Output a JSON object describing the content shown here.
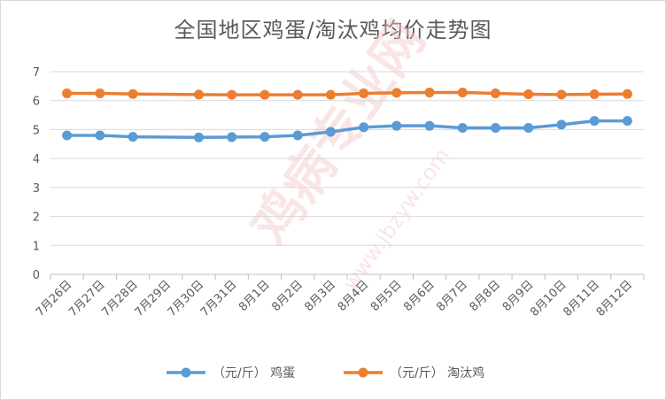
{
  "chart_data": {
    "type": "line",
    "title": "全国地区鸡蛋/淘汰鸡均价走势图",
    "categories": [
      "7月26日",
      "7月27日",
      "7月28日",
      "7月29日",
      "7月30日",
      "7月31日",
      "8月1日",
      "8月2日",
      "8月3日",
      "8月4日",
      "8月5日",
      "8月6日",
      "8月7日",
      "8月8日",
      "8月9日",
      "8月10日",
      "8月11日",
      "8月12日"
    ],
    "ylim": [
      0,
      7
    ],
    "yticks": [
      0,
      1,
      2,
      3,
      4,
      5,
      6,
      7
    ],
    "grid": true,
    "legend_position": "bottom",
    "series": [
      {
        "name": "（元/斤） 鸡蛋",
        "color": "#5b9bd5",
        "values": [
          4.8,
          4.8,
          4.75,
          null,
          4.73,
          4.74,
          4.75,
          4.8,
          4.92,
          5.08,
          5.13,
          5.13,
          5.06,
          5.06,
          5.06,
          5.17,
          5.3,
          5.3
        ]
      },
      {
        "name": "（元/斤） 淘汰鸡",
        "color": "#ed7d31",
        "values": [
          6.25,
          6.25,
          6.23,
          null,
          6.21,
          6.2,
          6.2,
          6.2,
          6.2,
          6.25,
          6.27,
          6.28,
          6.28,
          6.25,
          6.22,
          6.21,
          6.22,
          6.23
        ]
      }
    ]
  },
  "watermark": {
    "text": "鸡病专业网",
    "url": "www.jbzyw.com"
  }
}
